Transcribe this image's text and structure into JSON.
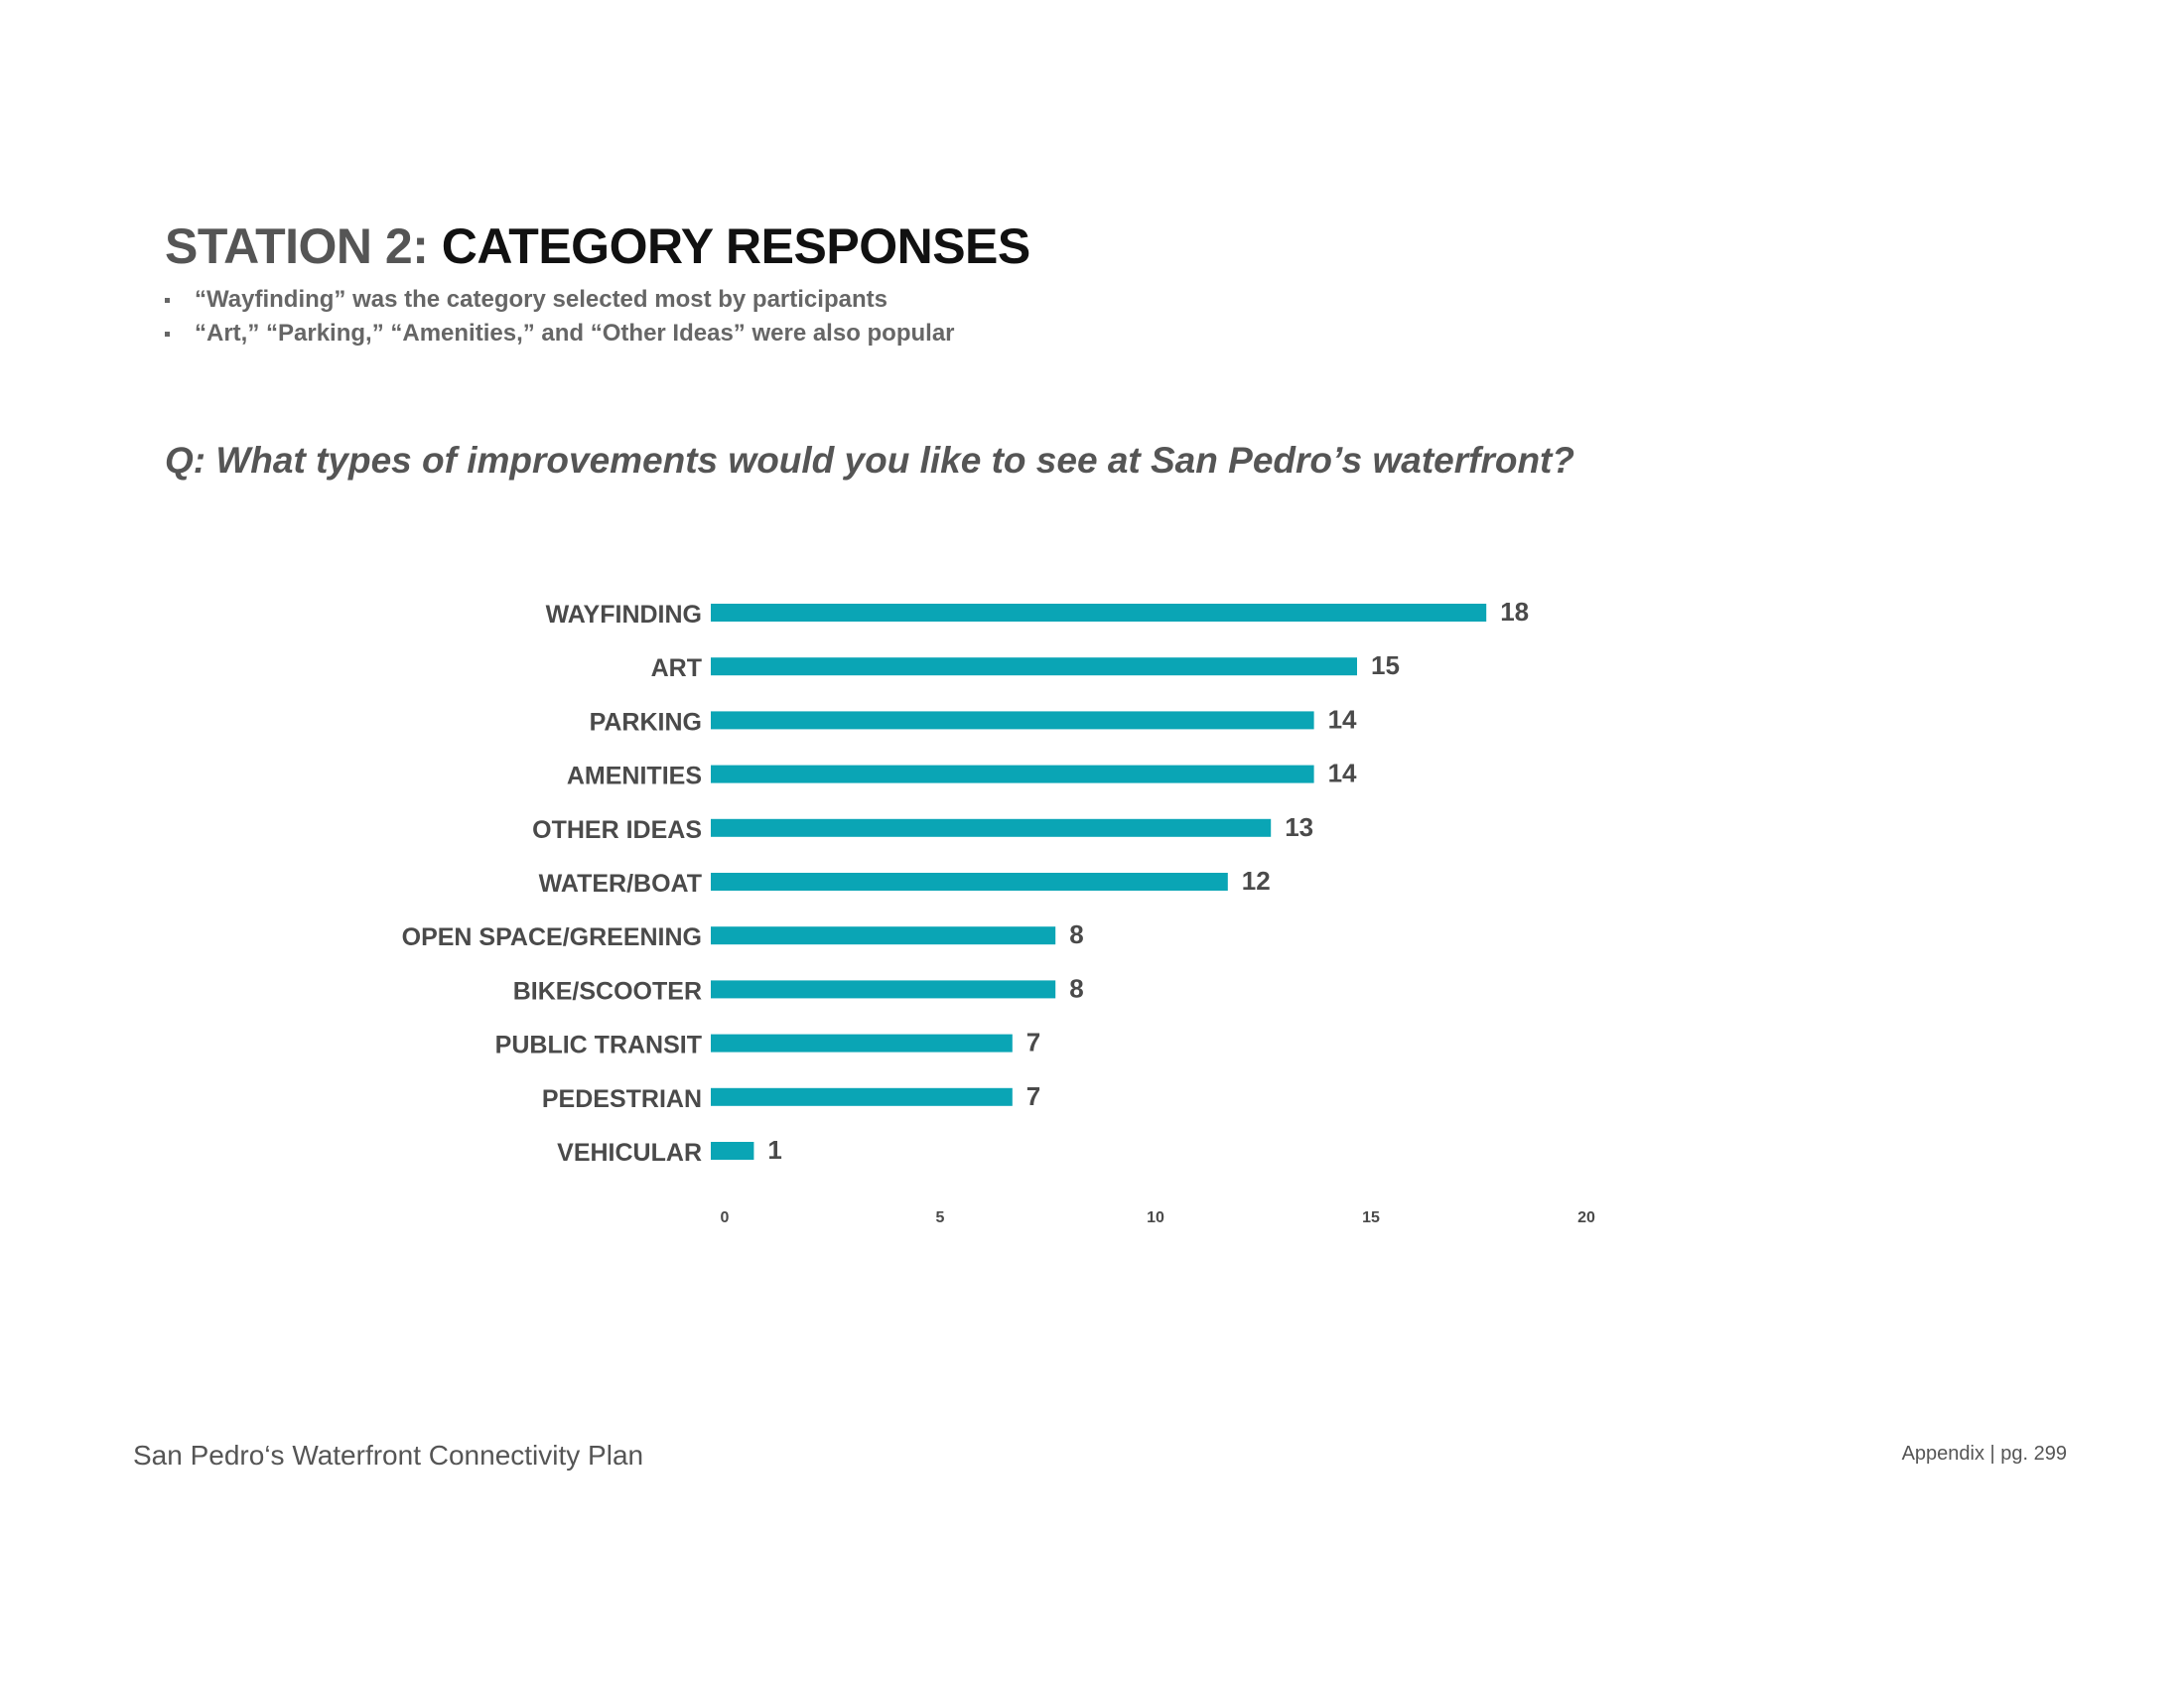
{
  "header": {
    "title_lead": "STATION 2:",
    "title_rest": "CATEGORY RESPONSES",
    "bullets": [
      "“Wayfinding” was the category selected most by participants",
      "“Art,” “Parking,” “Amenities,” and “Other Ideas” were also popular"
    ]
  },
  "question": "Q: What types of improvements would you like to see at San Pedro’s waterfront?",
  "chart_data": {
    "type": "bar",
    "orientation": "horizontal",
    "categories": [
      "WAYFINDING",
      "ART",
      "PARKING",
      "AMENITIES",
      "OTHER IDEAS",
      "WATER/BOAT",
      "OPEN SPACE/GREENING",
      "BIKE/SCOOTER",
      "PUBLIC TRANSIT",
      "PEDESTRIAN",
      "VEHICULAR"
    ],
    "values": [
      18,
      15,
      14,
      14,
      13,
      12,
      8,
      8,
      7,
      7,
      1
    ],
    "xlim": [
      0,
      20
    ],
    "xticks": [
      0,
      5,
      10,
      15,
      20
    ],
    "title": "",
    "xlabel": "",
    "ylabel": "",
    "grid": false,
    "legend": "none",
    "bar_color": "#0aa5b5",
    "label_color": "#4a4a4a"
  },
  "footer": {
    "left": "San Pedro‘s Waterfront Connectivity Plan",
    "right": "Appendix | pg. 299"
  }
}
